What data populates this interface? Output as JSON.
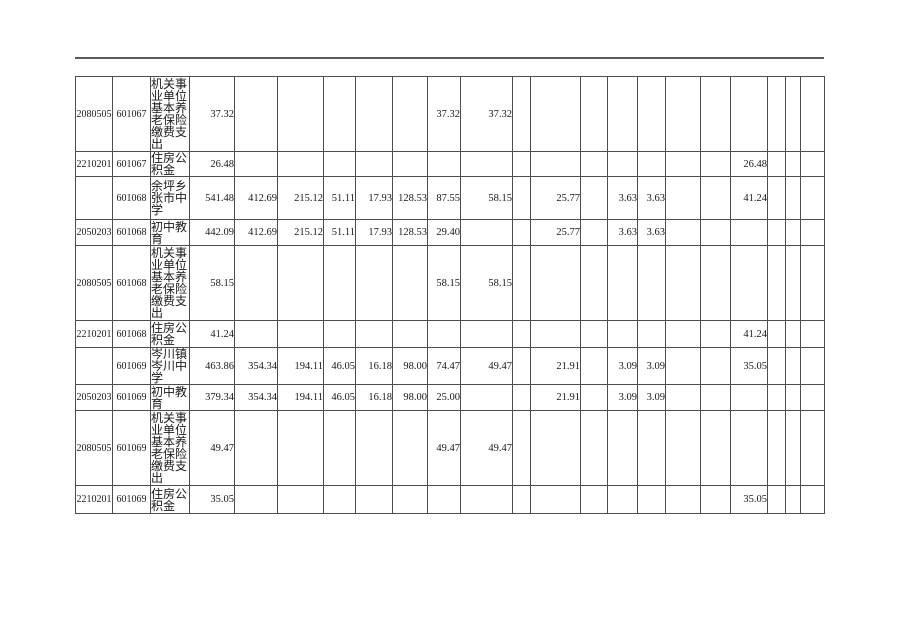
{
  "colors": {
    "ink": "#1a1a1a",
    "grid_line": "#4d4d4d",
    "header_rule": "#5a5a5a",
    "paper": "#ffffff"
  },
  "table": {
    "column_count": 22,
    "rows": [
      [
        "2080505",
        "601067",
        "机关事业单位基本养老保险缴费支出",
        "37.32",
        "",
        "",
        "",
        "",
        "",
        "37.32",
        "37.32",
        "",
        "",
        "",
        "",
        "",
        "",
        "",
        "",
        "",
        "",
        ""
      ],
      [
        "2210201",
        "601067",
        "住房公积金",
        "26.48",
        "",
        "",
        "",
        "",
        "",
        "",
        "",
        "",
        "",
        "",
        "",
        "",
        "",
        "",
        "26.48",
        "",
        "",
        ""
      ],
      [
        "",
        "601068",
        "余坪乡张市中学",
        "541.48",
        "412.69",
        "215.12",
        "51.11",
        "17.93",
        "128.53",
        "87.55",
        "58.15",
        "",
        "25.77",
        "",
        "3.63",
        "3.63",
        "",
        "",
        "41.24",
        "",
        "",
        ""
      ],
      [
        "2050203",
        "601068",
        "初中教育",
        "442.09",
        "412.69",
        "215.12",
        "51.11",
        "17.93",
        "128.53",
        "29.40",
        "",
        "",
        "25.77",
        "",
        "3.63",
        "3.63",
        "",
        "",
        "",
        "",
        "",
        ""
      ],
      [
        "2080505",
        "601068",
        "机关事业单位基本养老保险缴费支出",
        "58.15",
        "",
        "",
        "",
        "",
        "",
        "58.15",
        "58.15",
        "",
        "",
        "",
        "",
        "",
        "",
        "",
        "",
        "",
        "",
        ""
      ],
      [
        "2210201",
        "601068",
        "住房公积金",
        "41.24",
        "",
        "",
        "",
        "",
        "",
        "",
        "",
        "",
        "",
        "",
        "",
        "",
        "",
        "",
        "41.24",
        "",
        "",
        ""
      ],
      [
        "",
        "601069",
        "岑川镇岑川中学",
        "463.86",
        "354.34",
        "194.11",
        "46.05",
        "16.18",
        "98.00",
        "74.47",
        "49.47",
        "",
        "21.91",
        "",
        "3.09",
        "3.09",
        "",
        "",
        "35.05",
        "",
        "",
        ""
      ],
      [
        "2050203",
        "601069",
        "初中教育",
        "379.34",
        "354.34",
        "194.11",
        "46.05",
        "16.18",
        "98.00",
        "25.00",
        "",
        "",
        "21.91",
        "",
        "3.09",
        "3.09",
        "",
        "",
        "",
        "",
        "",
        ""
      ],
      [
        "2080505",
        "601069",
        "机关事业单位基本养老保险缴费支出",
        "49.47",
        "",
        "",
        "",
        "",
        "",
        "49.47",
        "49.47",
        "",
        "",
        "",
        "",
        "",
        "",
        "",
        "",
        "",
        "",
        ""
      ],
      [
        "2210201",
        "601069",
        "住房公积金",
        "35.05",
        "",
        "",
        "",
        "",
        "",
        "",
        "",
        "",
        "",
        "",
        "",
        "",
        "",
        "",
        "35.05",
        "",
        "",
        ""
      ]
    ]
  }
}
